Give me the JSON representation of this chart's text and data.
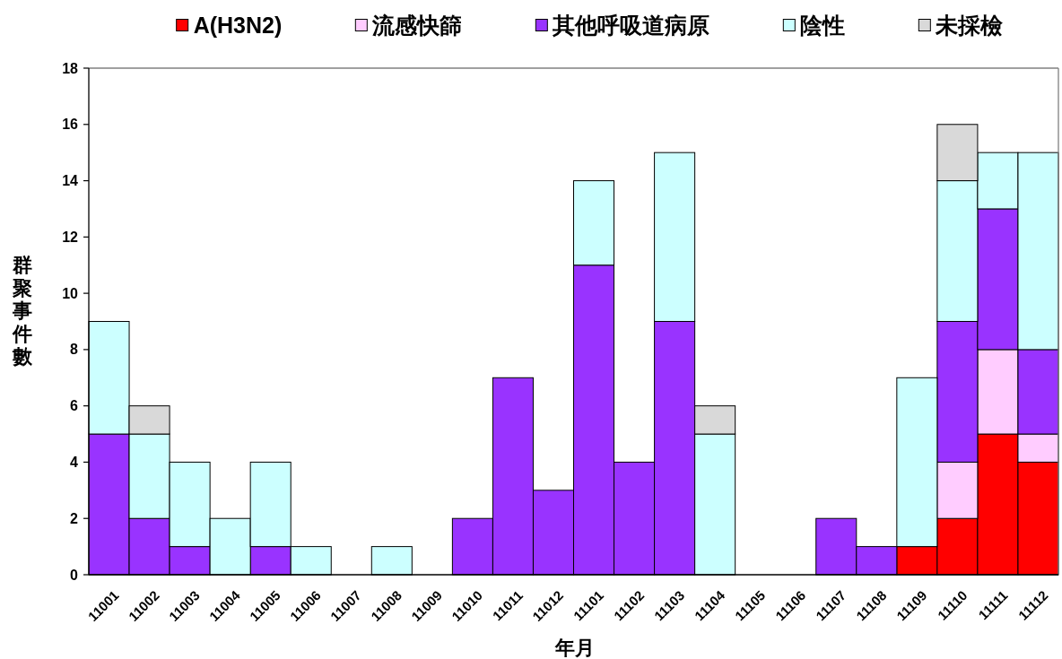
{
  "chart_data": {
    "type": "bar",
    "stacked": true,
    "categories": [
      "11001",
      "11002",
      "11003",
      "11004",
      "11005",
      "11006",
      "11007",
      "11008",
      "11009",
      "11010",
      "11011",
      "11012",
      "11101",
      "11102",
      "11103",
      "11104",
      "11105",
      "11106",
      "11107",
      "11108",
      "11109",
      "11110",
      "11111",
      "11112"
    ],
    "series": [
      {
        "name": "A(H3N2)",
        "color": "#ff0000",
        "values": [
          0,
          0,
          0,
          0,
          0,
          0,
          0,
          0,
          0,
          0,
          0,
          0,
          0,
          0,
          0,
          0,
          0,
          0,
          0,
          0,
          1,
          2,
          5,
          4
        ]
      },
      {
        "name": "流感快篩",
        "color": "#ffccff",
        "values": [
          0,
          0,
          0,
          0,
          0,
          0,
          0,
          0,
          0,
          0,
          0,
          0,
          0,
          0,
          0,
          0,
          0,
          0,
          0,
          0,
          0,
          2,
          3,
          1
        ]
      },
      {
        "name": "其他呼吸道病原",
        "color": "#9933ff",
        "values": [
          5,
          2,
          1,
          0,
          1,
          0,
          0,
          0,
          0,
          2,
          7,
          3,
          11,
          4,
          9,
          0,
          0,
          0,
          2,
          1,
          0,
          5,
          5,
          3
        ]
      },
      {
        "name": "陰性",
        "color": "#ccffff",
        "values": [
          4,
          3,
          3,
          2,
          3,
          1,
          0,
          1,
          0,
          0,
          0,
          0,
          3,
          0,
          6,
          5,
          0,
          0,
          0,
          0,
          6,
          5,
          2,
          7
        ]
      },
      {
        "name": "未採檢",
        "color": "#d9d9d9",
        "values": [
          0,
          1,
          0,
          0,
          0,
          0,
          0,
          0,
          0,
          0,
          0,
          0,
          0,
          0,
          0,
          1,
          0,
          0,
          0,
          0,
          0,
          2,
          0,
          0
        ]
      }
    ],
    "ylim": [
      0,
      18
    ],
    "yticks": [
      0,
      2,
      4,
      6,
      8,
      10,
      12,
      14,
      16,
      18
    ],
    "ylabel": "群聚事件數",
    "xlabel": "年月",
    "legend": "top",
    "grid": false
  }
}
